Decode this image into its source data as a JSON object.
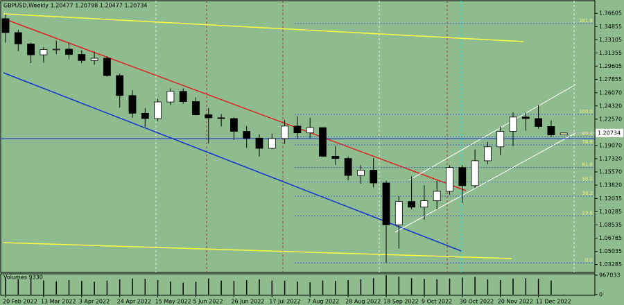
{
  "chart_data": {
    "type": "candlestick",
    "title": "GBPUSD,Weekly 1.20477 1.20798 1.20477 1.20734",
    "categories": [
      "20 Feb 2022",
      null,
      null,
      "13 Mar 2022",
      null,
      null,
      "3 Apr 2022",
      null,
      null,
      "24 Apr 2022",
      null,
      null,
      "15 May 2022",
      null,
      null,
      "5 Jun 2022",
      null,
      null,
      "26 Jun 2022",
      null,
      null,
      "17 Jul 2022",
      null,
      null,
      "7 Aug 2022",
      null,
      null,
      "28 Aug 2022",
      null,
      null,
      "18 Sep 2022",
      null,
      null,
      "9 Oct 2022",
      null,
      null,
      "30 Oct 2022",
      null,
      null,
      "20 Nov 2022",
      null,
      null,
      "11 Dec 2022",
      null,
      null
    ],
    "open": [
      1.359,
      1.3405,
      1.3255,
      1.311,
      1.318,
      1.3185,
      1.3115,
      1.3035,
      1.3065,
      1.2835,
      1.257,
      1.2335,
      1.2265,
      1.2485,
      1.2625,
      1.249,
      1.2315,
      1.2275,
      1.2265,
      1.2095,
      1.2005,
      1.187,
      1.2,
      1.2165,
      1.2075,
      1.2145,
      1.1765,
      1.1735,
      1.151,
      1.158,
      1.141,
      1.0855,
      1.1165,
      1.109,
      1.1175,
      1.13,
      1.1615,
      1.1375,
      1.1705,
      1.189,
      1.2095,
      1.2285,
      1.2265,
      1.216,
      1.20477
    ],
    "high": [
      1.3645,
      1.344,
      1.327,
      1.321,
      1.33,
      1.3275,
      1.317,
      1.315,
      1.309,
      1.286,
      1.264,
      1.2405,
      1.2525,
      1.2665,
      1.2665,
      1.2545,
      1.2405,
      1.2325,
      1.228,
      1.2165,
      1.2055,
      1.2065,
      1.2245,
      1.2295,
      1.2275,
      1.2145,
      1.19,
      1.176,
      1.165,
      1.174,
      1.144,
      1.1235,
      1.1495,
      1.138,
      1.144,
      1.1645,
      1.165,
      1.1855,
      1.1955,
      1.2155,
      1.2345,
      1.2345,
      1.2445,
      1.224,
      1.20798
    ],
    "low": [
      1.3272,
      1.316,
      1.3,
      1.3005,
      1.312,
      1.305,
      1.3,
      1.298,
      1.282,
      1.241,
      1.2275,
      1.2155,
      1.223,
      1.2445,
      1.246,
      1.2305,
      1.1935,
      1.216,
      1.198,
      1.1875,
      1.176,
      1.186,
      1.193,
      1.2,
      1.2005,
      1.176,
      1.165,
      1.1445,
      1.14,
      1.135,
      1.035,
      1.054,
      1.106,
      1.0925,
      1.106,
      1.1255,
      1.1145,
      1.1345,
      1.166,
      1.178,
      1.19,
      1.2105,
      1.213,
      1.202,
      1.20477
    ],
    "close": [
      1.3405,
      1.3255,
      1.311,
      1.318,
      1.3185,
      1.3115,
      1.3035,
      1.3065,
      1.2835,
      1.257,
      1.2335,
      1.2265,
      1.2485,
      1.2625,
      1.249,
      1.2315,
      1.2275,
      1.2265,
      1.2095,
      1.2005,
      1.187,
      1.2,
      1.2165,
      1.2075,
      1.2145,
      1.1765,
      1.1735,
      1.151,
      1.158,
      1.141,
      1.0855,
      1.1165,
      1.109,
      1.1175,
      1.13,
      1.1615,
      1.1375,
      1.1705,
      1.189,
      1.2095,
      1.2285,
      1.2265,
      1.216,
      1.20477,
      1.20734
    ],
    "last_price": {
      "value": 1.20734,
      "label": "1.20734"
    },
    "ylim": [
      1.3828,
      1.0224
    ],
    "yticks": [
      1.36605,
      1.34855,
      1.33105,
      1.31355,
      1.29605,
      1.27855,
      {
        "value": 1.2607,
        "label": "1.26070"
      },
      {
        "value": 1.2432,
        "label": "1.24320"
      },
      {
        "value": 1.2257,
        "label": "1.22570"
      },
      {
        "value": 1.1907,
        "label": "1.19070"
      },
      {
        "value": 1.1732,
        "label": "1.17320"
      },
      {
        "value": 1.1557,
        "label": "1.15570"
      },
      {
        "value": 1.1382,
        "label": "1.13820"
      },
      1.12035,
      1.10285,
      1.08535,
      1.06785,
      1.05035,
      1.03285
    ],
    "fib_levels": [
      {
        "label": "161.8",
        "value": 1.3525
      },
      {
        "label": "100.0",
        "value": 1.232
      },
      {
        "label": "85.4",
        "value": 1.2025
      },
      {
        "label": "78.6",
        "value": 1.1915
      },
      {
        "label": "61.8",
        "value": 1.1615
      },
      {
        "label": "50.0",
        "value": 1.1425
      },
      {
        "label": "38.2",
        "value": 1.1235
      },
      {
        "label": "23.6",
        "value": 1.0975
      },
      {
        "label": "0.0",
        "value": 1.035
      }
    ],
    "volume": {
      "label": "Volumes 9330",
      "ylim": [
        0,
        967033
      ],
      "yticks": [
        0,
        967033
      ],
      "values": [
        820000,
        760000,
        790000,
        700000,
        650000,
        720000,
        680000,
        640000,
        700000,
        760000,
        800000,
        780000,
        720000,
        650000,
        600000,
        640000,
        800000,
        700000,
        680000,
        720000,
        760000,
        700000,
        690000,
        650000,
        610000,
        700000,
        680000,
        720000,
        760000,
        820000,
        960000,
        900000,
        820000,
        780000,
        760000,
        800000,
        850000,
        880000,
        760000,
        720000,
        800000,
        820000,
        790000,
        700000,
        9330
      ]
    }
  }
}
